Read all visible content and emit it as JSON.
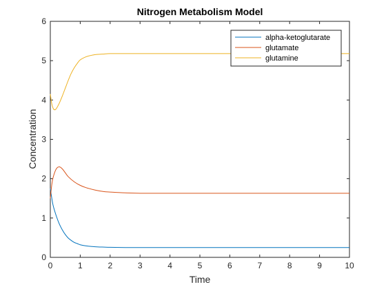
{
  "chart_data": {
    "type": "line",
    "title": "Nitrogen Metabolism Model",
    "xlabel": "Time",
    "ylabel": "Concentration",
    "xlim": [
      0,
      10
    ],
    "ylim": [
      0,
      6
    ],
    "xticks": [
      "0",
      "1",
      "2",
      "3",
      "4",
      "5",
      "6",
      "7",
      "8",
      "9",
      "10"
    ],
    "yticks": [
      "0",
      "1",
      "2",
      "3",
      "4",
      "5",
      "6"
    ],
    "grid": false,
    "legend_position": "top-right",
    "series": [
      {
        "name": "alpha-ketoglutarate",
        "color": "#0072BD",
        "x": [
          0,
          0.05,
          0.1,
          0.2,
          0.3,
          0.4,
          0.5,
          0.6,
          0.7,
          0.8,
          0.9,
          1.0,
          1.2,
          1.4,
          1.6,
          1.8,
          2.0,
          2.5,
          3,
          4,
          5,
          6,
          7,
          8,
          9,
          10
        ],
        "y": [
          1.75,
          1.5,
          1.3,
          1.05,
          0.85,
          0.7,
          0.58,
          0.49,
          0.43,
          0.38,
          0.35,
          0.32,
          0.29,
          0.275,
          0.265,
          0.26,
          0.255,
          0.25,
          0.25,
          0.25,
          0.25,
          0.25,
          0.25,
          0.25,
          0.25,
          0.25
        ]
      },
      {
        "name": "glutamate",
        "color": "#D95319",
        "x": [
          0,
          0.05,
          0.1,
          0.2,
          0.3,
          0.4,
          0.5,
          0.6,
          0.8,
          1.0,
          1.2,
          1.5,
          1.8,
          2.0,
          2.5,
          3,
          4,
          5,
          6,
          7,
          8,
          9,
          10
        ],
        "y": [
          1.5,
          1.85,
          2.05,
          2.25,
          2.3,
          2.25,
          2.15,
          2.05,
          1.92,
          1.83,
          1.77,
          1.71,
          1.67,
          1.66,
          1.64,
          1.63,
          1.63,
          1.63,
          1.63,
          1.63,
          1.63,
          1.63,
          1.63
        ]
      },
      {
        "name": "glutamine",
        "color": "#EDB120",
        "x": [
          0,
          0.05,
          0.1,
          0.15,
          0.2,
          0.3,
          0.4,
          0.5,
          0.6,
          0.7,
          0.8,
          0.9,
          1.0,
          1.2,
          1.4,
          1.6,
          1.8,
          2.0,
          2.5,
          3,
          4,
          5,
          6,
          7,
          8,
          9,
          10
        ],
        "y": [
          4.15,
          3.9,
          3.78,
          3.75,
          3.78,
          3.92,
          4.1,
          4.3,
          4.5,
          4.68,
          4.82,
          4.93,
          5.02,
          5.1,
          5.14,
          5.16,
          5.17,
          5.18,
          5.18,
          5.18,
          5.18,
          5.18,
          5.18,
          5.18,
          5.18,
          5.18,
          5.18
        ]
      }
    ]
  }
}
